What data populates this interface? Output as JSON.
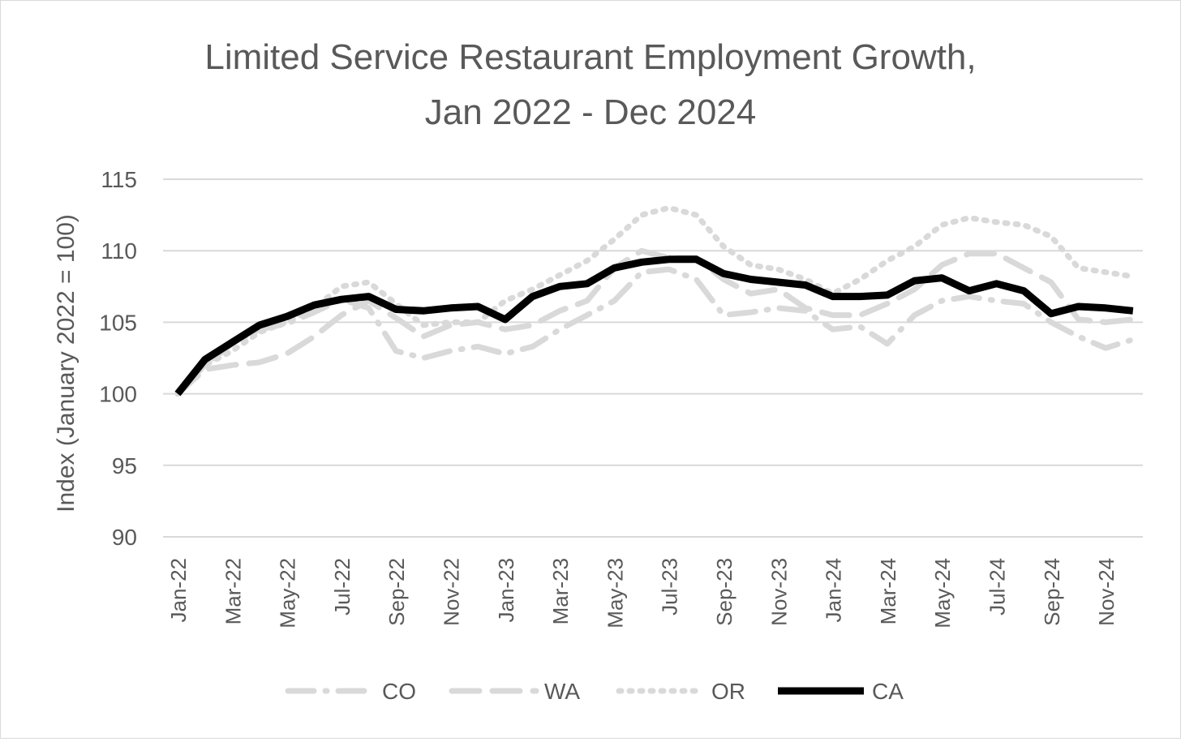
{
  "chart_data": {
    "type": "line",
    "title_line1": "Limited Service Restaurant Employment Growth,",
    "title_line2": "Jan 2022 -  Dec 2024",
    "ylabel": "Index (January 2022 = 100)",
    "xlabel": "",
    "ylim": [
      90,
      115
    ],
    "yticks": [
      90,
      95,
      100,
      105,
      110,
      115
    ],
    "grid": true,
    "legend_position": "bottom",
    "x": [
      "Jan-22",
      "Feb-22",
      "Mar-22",
      "Apr-22",
      "May-22",
      "Jun-22",
      "Jul-22",
      "Aug-22",
      "Sep-22",
      "Oct-22",
      "Nov-22",
      "Dec-22",
      "Jan-23",
      "Feb-23",
      "Mar-23",
      "Apr-23",
      "May-23",
      "Jun-23",
      "Jul-23",
      "Aug-23",
      "Sep-23",
      "Oct-23",
      "Nov-23",
      "Dec-23",
      "Jan-24",
      "Feb-24",
      "Mar-24",
      "Apr-24",
      "May-24",
      "Jun-24",
      "Jul-24",
      "Aug-24",
      "Sep-24",
      "Oct-24",
      "Nov-24",
      "Dec-24"
    ],
    "xtick_labels": [
      "Jan-22",
      "Mar-22",
      "May-22",
      "Jul-22",
      "Sep-22",
      "Nov-22",
      "Jan-23",
      "Mar-23",
      "May-23",
      "Jul-23",
      "Sep-23",
      "Nov-23",
      "Jan-24",
      "Mar-24",
      "May-24",
      "Jul-24",
      "Sep-24",
      "Nov-24"
    ],
    "series": [
      {
        "name": "CO",
        "style": "dash-dot",
        "color": "#d9d9d9",
        "values": [
          100.0,
          102.0,
          103.5,
          104.5,
          104.9,
          105.7,
          106.6,
          106.0,
          103.0,
          102.5,
          103.0,
          103.3,
          102.8,
          103.3,
          104.5,
          105.5,
          106.5,
          108.5,
          108.7,
          108.0,
          105.5,
          105.7,
          106.0,
          105.8,
          104.5,
          104.7,
          103.5,
          105.5,
          106.5,
          106.8,
          106.5,
          106.3,
          105.0,
          104.0,
          103.2,
          103.8
        ]
      },
      {
        "name": "WA",
        "style": "dash",
        "color": "#d9d9d9",
        "values": [
          100.0,
          101.7,
          102.0,
          102.2,
          102.8,
          104.0,
          105.5,
          106.5,
          105.3,
          104.0,
          104.8,
          105.0,
          104.5,
          104.8,
          105.8,
          106.5,
          108.8,
          110.0,
          109.5,
          109.5,
          108.0,
          107.0,
          107.3,
          106.0,
          105.5,
          105.5,
          106.3,
          107.3,
          109.0,
          109.8,
          109.8,
          108.8,
          107.8,
          105.2,
          105.0,
          105.2
        ]
      },
      {
        "name": "OR",
        "style": "dot",
        "color": "#d9d9d9",
        "values": [
          100.0,
          102.0,
          103.0,
          104.3,
          105.0,
          106.0,
          107.5,
          107.8,
          106.3,
          104.8,
          105.0,
          105.0,
          106.5,
          107.3,
          108.3,
          109.3,
          110.8,
          112.5,
          113.0,
          112.5,
          110.3,
          109.0,
          108.7,
          108.0,
          107.0,
          108.0,
          109.3,
          110.3,
          111.8,
          112.3,
          112.0,
          111.8,
          111.0,
          108.8,
          108.5,
          108.2
        ]
      },
      {
        "name": "CA",
        "style": "solid",
        "color": "#000000",
        "values": [
          100.0,
          102.4,
          103.6,
          104.8,
          105.4,
          106.2,
          106.6,
          106.8,
          105.9,
          105.8,
          106.0,
          106.1,
          105.2,
          106.8,
          107.5,
          107.7,
          108.8,
          109.2,
          109.4,
          109.4,
          108.4,
          108.0,
          107.8,
          107.6,
          106.8,
          106.8,
          106.9,
          107.9,
          108.1,
          107.2,
          107.7,
          107.2,
          105.6,
          106.1,
          106.0,
          105.8
        ]
      }
    ]
  }
}
